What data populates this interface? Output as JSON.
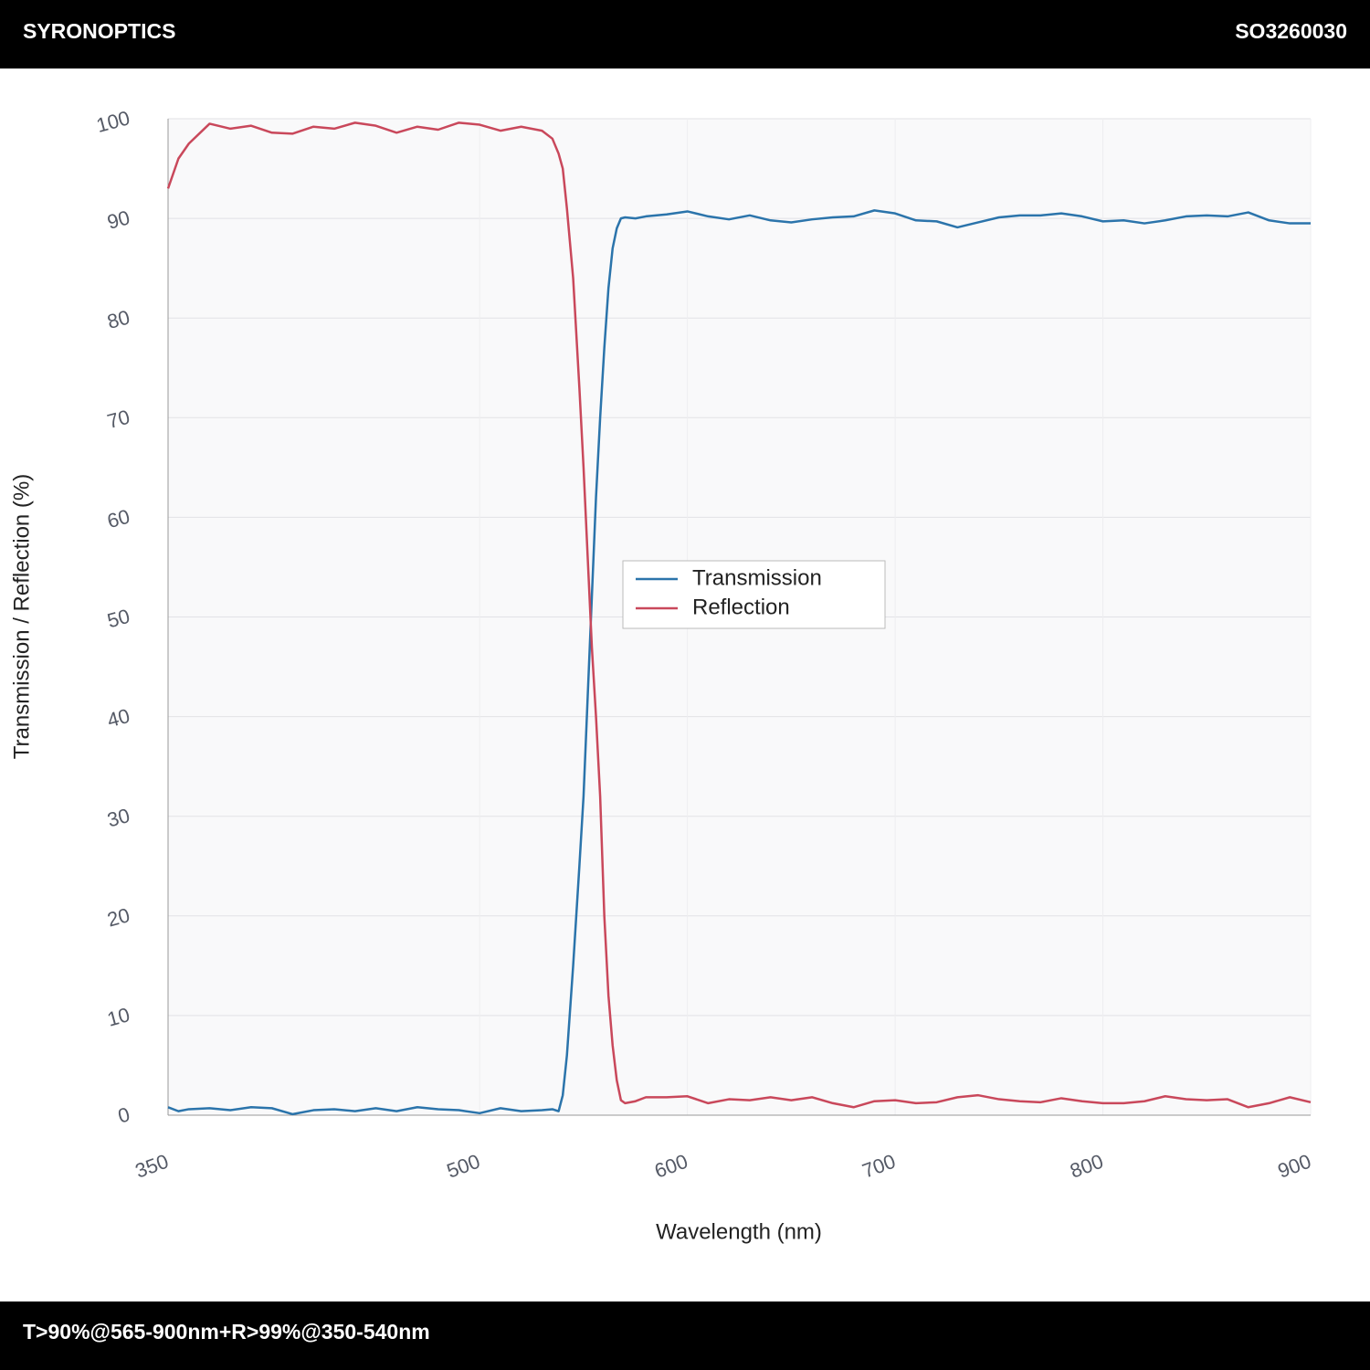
{
  "header": {
    "brand": "SYRONOPTICS",
    "part_number": "SO3260030"
  },
  "footer": {
    "spec": "T>90%@565-900nm+R>99%@350-540nm"
  },
  "chart_data": {
    "type": "line",
    "x_label": "Wavelength (nm)",
    "y_label": "Transmission / Reflection (%)",
    "xlim": [
      350,
      900
    ],
    "xticks": [
      350,
      500,
      600,
      700,
      800,
      900
    ],
    "ylim": [
      0,
      100
    ],
    "yticks": [
      0,
      10,
      20,
      30,
      40,
      50,
      60,
      70,
      80,
      90,
      100
    ],
    "grid": true,
    "legend": "center",
    "x": [
      350,
      355,
      360,
      370,
      380,
      390,
      400,
      410,
      420,
      430,
      440,
      450,
      460,
      470,
      480,
      490,
      500,
      510,
      520,
      530,
      535,
      538,
      540,
      542,
      545,
      548,
      550,
      552,
      554,
      556,
      558,
      560,
      562,
      564,
      566,
      568,
      570,
      575,
      580,
      590,
      600,
      610,
      620,
      630,
      640,
      650,
      660,
      670,
      680,
      690,
      700,
      710,
      720,
      730,
      740,
      750,
      760,
      770,
      780,
      790,
      800,
      810,
      820,
      830,
      840,
      850,
      860,
      870,
      880,
      890,
      900
    ],
    "series": [
      {
        "name": "Transmission",
        "color": "#2b74ab",
        "values": [
          0.8,
          0.4,
          0.6,
          0.7,
          0.5,
          0.8,
          0.7,
          0.1,
          0.5,
          0.6,
          0.4,
          0.7,
          0.4,
          0.8,
          0.6,
          0.5,
          0.2,
          0.7,
          0.4,
          0.5,
          0.6,
          0.4,
          2,
          6,
          15,
          25,
          32,
          42,
          52,
          62,
          70,
          77,
          83,
          87,
          89,
          90,
          90.1,
          90,
          90.2,
          90.4,
          90.7,
          90.2,
          89.9,
          90.3,
          89.8,
          89.6,
          89.9,
          90.1,
          90.2,
          90.8,
          90.5,
          89.8,
          89.7,
          89.1,
          89.6,
          90.1,
          90.3,
          90.3,
          90.5,
          90.2,
          89.7,
          89.8,
          89.5,
          89.8,
          90.2,
          90.3,
          90.2,
          90.6,
          89.8,
          89.5,
          89.5
        ]
      },
      {
        "name": "Reflection",
        "color": "#c9485b",
        "values": [
          93,
          96,
          97.5,
          99.5,
          99,
          99.3,
          98.6,
          98.5,
          99.2,
          99,
          99.6,
          99.3,
          98.6,
          99.2,
          98.9,
          99.6,
          99.4,
          98.8,
          99.2,
          98.8,
          98,
          96.5,
          95,
          91,
          84,
          73,
          65,
          56,
          47,
          40,
          32,
          20,
          12,
          7,
          3.5,
          1.5,
          1.2,
          1.4,
          1.8,
          1.8,
          1.9,
          1.2,
          1.6,
          1.5,
          1.8,
          1.5,
          1.8,
          1.2,
          0.8,
          1.4,
          1.5,
          1.2,
          1.3,
          1.8,
          2.0,
          1.6,
          1.4,
          1.3,
          1.7,
          1.4,
          1.2,
          1.2,
          1.4,
          1.9,
          1.6,
          1.5,
          1.6,
          0.8,
          1.2,
          1.8,
          1.3
        ]
      }
    ]
  }
}
